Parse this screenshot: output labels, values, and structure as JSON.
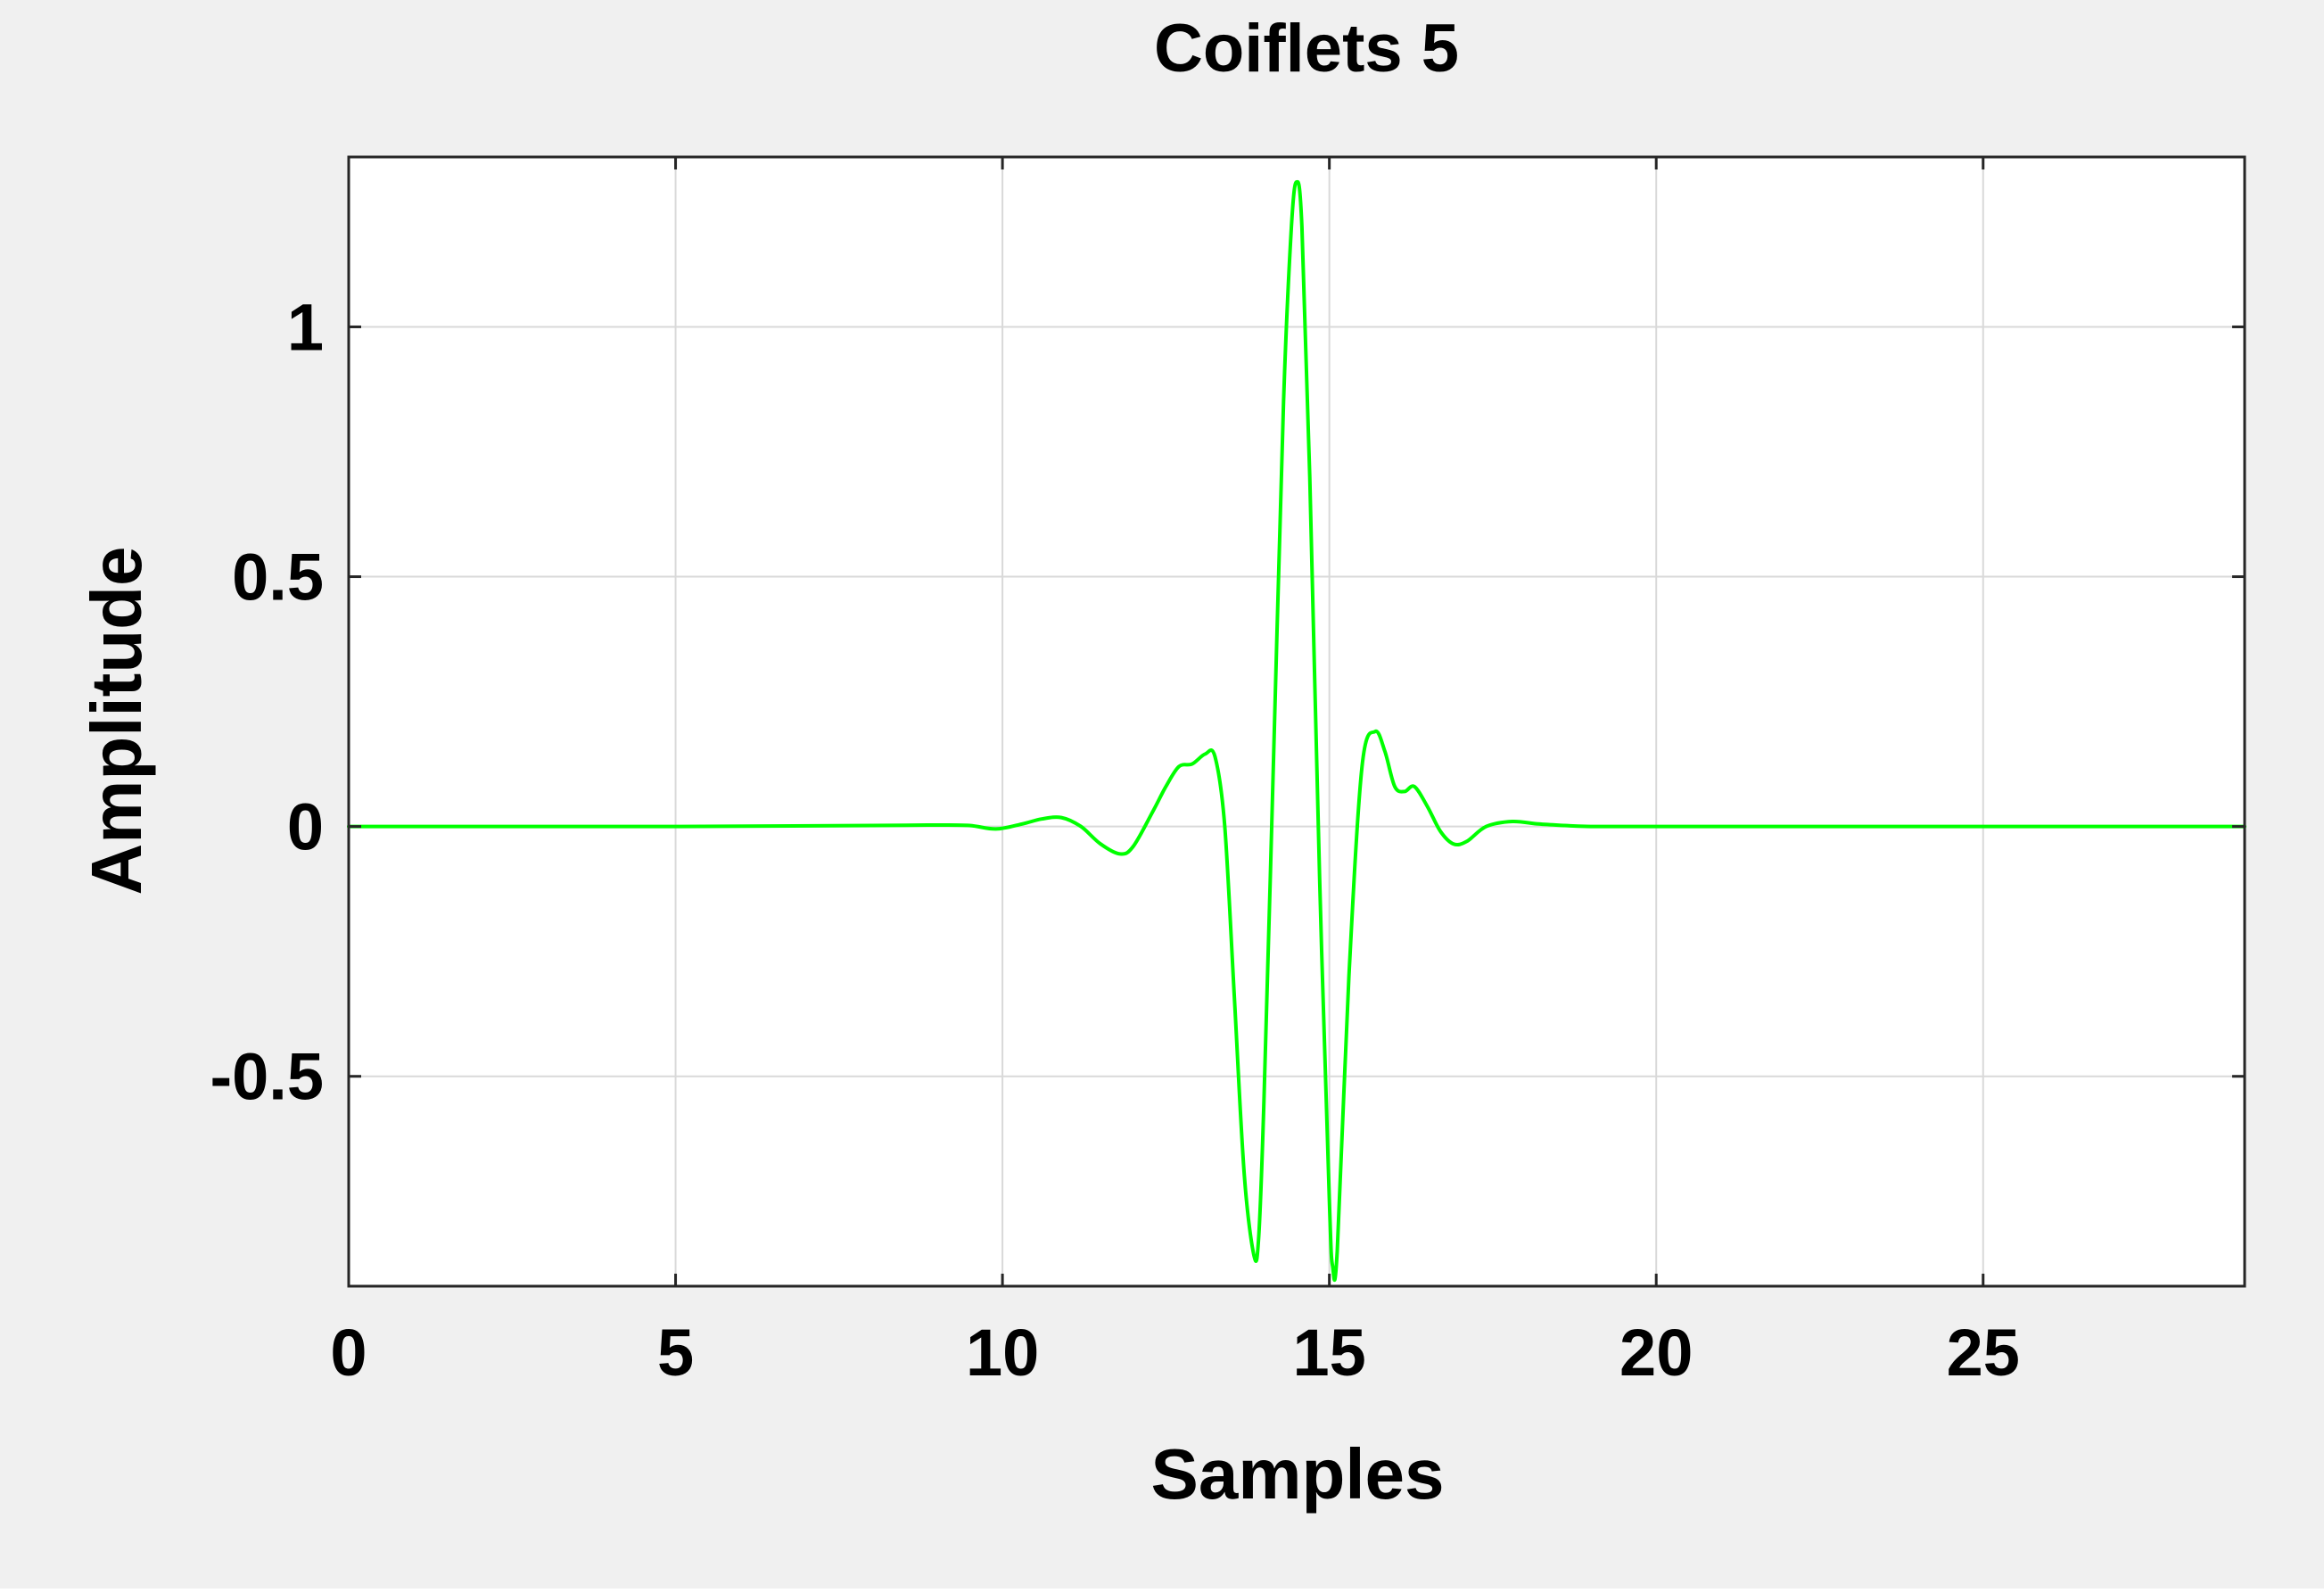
{
  "chart_data": {
    "type": "line",
    "title": "Coiflets 5",
    "xlabel": "Samples",
    "ylabel": "Amplitude",
    "xlim": [
      0,
      29
    ],
    "ylim": [
      -0.92,
      1.34
    ],
    "grid": true,
    "colors": {
      "figure_background": "#f0f0f0",
      "axes_background": "#ffffff",
      "series": "#00ff00",
      "grid": "#d9d9d9"
    },
    "x_ticks": [
      {
        "value": 0,
        "label": "0"
      },
      {
        "value": 5,
        "label": "5"
      },
      {
        "value": 10,
        "label": "10"
      },
      {
        "value": 15,
        "label": "15"
      },
      {
        "value": 20,
        "label": "20"
      },
      {
        "value": 25,
        "label": "25"
      }
    ],
    "y_ticks": [
      {
        "value": -0.5,
        "label": "-0.5"
      },
      {
        "value": 0,
        "label": "0"
      },
      {
        "value": 0.5,
        "label": "0.5"
      },
      {
        "value": 1,
        "label": "1"
      }
    ],
    "series": [
      {
        "x": [
          0,
          5,
          8,
          9,
          9.5,
          9.9,
          10.3,
          10.6,
          10.9,
          11.2,
          11.5,
          11.8,
          12.0,
          12.3,
          12.5,
          12.7,
          12.9,
          13.1,
          13.25,
          13.4,
          13.55,
          13.7,
          13.85,
          13.92,
          14.0,
          14.15,
          14.3,
          14.42,
          14.5,
          14.58,
          14.7,
          14.85,
          15.0,
          15.05,
          15.12,
          15.3,
          15.5,
          15.7,
          15.85,
          16.0,
          16.15,
          16.3,
          16.5,
          16.7,
          16.9,
          17.1,
          17.4,
          17.8,
          18.2,
          18.6,
          19.0,
          20,
          25,
          29
        ],
        "y": [
          0,
          0,
          0.002,
          0.003,
          0.002,
          -0.005,
          0.005,
          0.015,
          0.018,
          0.0,
          -0.035,
          -0.055,
          -0.04,
          0.03,
          0.08,
          0.12,
          0.125,
          0.145,
          0.14,
          0.0,
          -0.35,
          -0.7,
          -0.86,
          -0.82,
          -0.55,
          0.15,
          0.85,
          1.2,
          1.29,
          1.2,
          0.7,
          -0.1,
          -0.75,
          -0.88,
          -0.85,
          -0.3,
          0.12,
          0.19,
          0.15,
          0.08,
          0.07,
          0.08,
          0.04,
          -0.01,
          -0.035,
          -0.03,
          0.0,
          0.01,
          0.005,
          0.002,
          0.0,
          0,
          0,
          0
        ]
      }
    ]
  }
}
